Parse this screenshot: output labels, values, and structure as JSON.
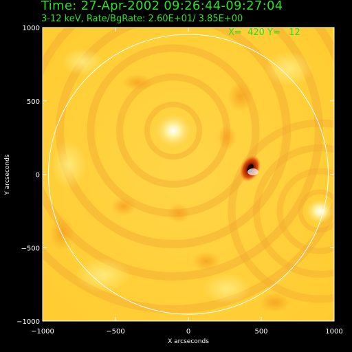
{
  "header": {
    "title": "Time: 27-Apr-2002 09:26:44-09:27:04",
    "subtitle": "3-12 keV, Rate/BgRate:  2.60E+01/  3.85E+00",
    "cursor_readout": "X=  420 Y=   12"
  },
  "plot": {
    "xlabel": "X arcseconds",
    "ylabel": "Y arcseconds",
    "xlim": [
      -1000,
      1000
    ],
    "ylim": [
      -1000,
      1000
    ],
    "xticks": [
      "−1000",
      "−500",
      "0",
      "500",
      "1000"
    ],
    "yticks": [
      "1000",
      "500",
      "0",
      "−500",
      "−1000"
    ],
    "solar_limb_radius": 960,
    "colors": {
      "background": "#ffd23c",
      "foreground_text": "#28e028",
      "axis": "#ffffff",
      "limb": "#ffffff",
      "hot_source": "#ffffe6",
      "dark_source": "#200000"
    }
  }
}
